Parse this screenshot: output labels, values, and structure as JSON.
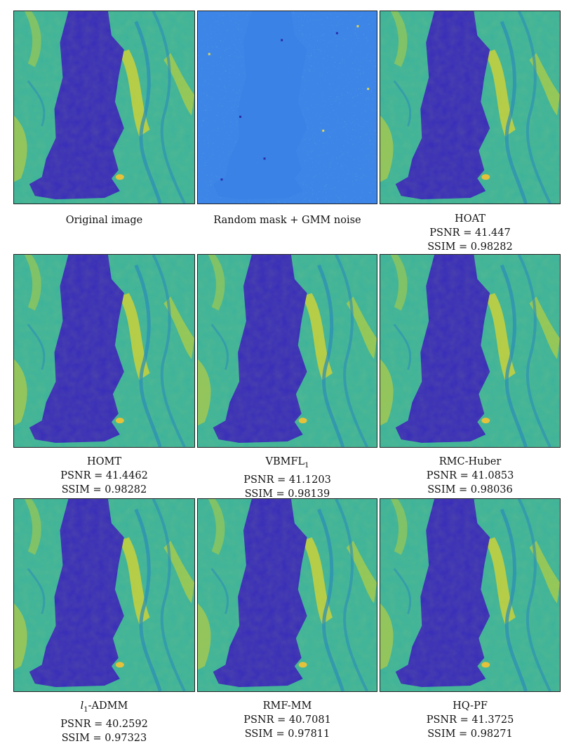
{
  "figure": {
    "panels": [
      {
        "id": "original",
        "title": "Original image",
        "type": "clean"
      },
      {
        "id": "noisy",
        "title": "Random mask + GMM noise",
        "type": "noisy"
      },
      {
        "id": "hoat",
        "title": "HOAT",
        "psnr": "PSNR = 41.447",
        "ssim": "SSIM = 0.98282",
        "type": "clean"
      },
      {
        "id": "homt",
        "title": "HOMT",
        "psnr": "PSNR = 41.4462",
        "ssim": "SSIM = 0.98282",
        "type": "clean"
      },
      {
        "id": "vbmfl1",
        "title": "VBMFL",
        "subscript": "1",
        "psnr": "PSNR = 41.1203",
        "ssim": "SSIM = 0.98139",
        "type": "clean"
      },
      {
        "id": "rmc-huber",
        "title": "RMC-Huber",
        "psnr": "PSNR = 41.0853",
        "ssim": "SSIM = 0.98036",
        "type": "clean"
      },
      {
        "id": "l1-admm",
        "title_prefix": "l",
        "title_subscript": "1",
        "title": "-ADMM",
        "psnr": "PSNR = 40.2592",
        "ssim": "SSIM = 0.97323",
        "type": "clean"
      },
      {
        "id": "rmf-mm",
        "title": "RMF-MM",
        "psnr": "PSNR = 40.7081",
        "ssim": "SSIM = 0.97811",
        "type": "clean"
      },
      {
        "id": "hq-pf",
        "title": "HQ-PF",
        "psnr": "PSNR = 41.3725",
        "ssim": "SSIM = 0.98271",
        "type": "clean"
      }
    ],
    "colors": {
      "water": "#3a2fb8",
      "land": "#3fb39a",
      "land_bright": "#c9d13a",
      "noise_bg": "#3d86e8"
    }
  }
}
